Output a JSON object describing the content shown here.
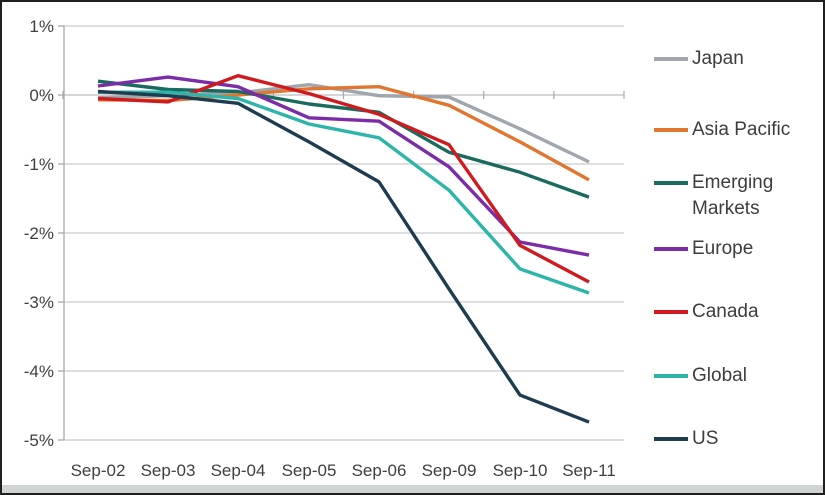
{
  "chart_data": {
    "type": "line",
    "title": "",
    "xlabel": "",
    "ylabel": "",
    "categories": [
      "Sep-02",
      "Sep-03",
      "Sep-04",
      "Sep-05",
      "Sep-06",
      "Sep-09",
      "Sep-10",
      "Sep-11"
    ],
    "y_tick_labels": [
      "1%",
      "0%",
      "-1%",
      "-2%",
      "-3%",
      "-4%",
      "-5%"
    ],
    "ylim": [
      -5,
      1
    ],
    "y_step": 1,
    "y_unit": "%",
    "grid": true,
    "legend_position": "right",
    "series": [
      {
        "name": "Japan",
        "color": "#9fa6ac",
        "values": [
          -0.04,
          -0.01,
          0.03,
          0.15,
          -0.01,
          -0.03,
          -0.49,
          -0.97
        ]
      },
      {
        "name": "Asia Pacific",
        "color": "#e0762f",
        "values": [
          -0.07,
          -0.08,
          0.0,
          0.09,
          0.12,
          -0.15,
          -0.68,
          -1.23
        ]
      },
      {
        "name": "Emerging Markets",
        "color": "#1a6a5f",
        "values": [
          0.2,
          0.08,
          0.05,
          -0.13,
          -0.25,
          -0.83,
          -1.12,
          -1.48
        ]
      },
      {
        "name": "Europe",
        "color": "#7a2da6",
        "values": [
          0.13,
          0.26,
          0.12,
          -0.33,
          -0.38,
          -1.04,
          -2.13,
          -2.32
        ]
      },
      {
        "name": "Canada",
        "color": "#cf1b20",
        "values": [
          -0.05,
          -0.1,
          0.28,
          0.02,
          -0.28,
          -0.72,
          -2.18,
          -2.71
        ]
      },
      {
        "name": "Global",
        "color": "#2db5aa",
        "values": [
          0.04,
          0.04,
          -0.05,
          -0.42,
          -0.62,
          -1.38,
          -2.52,
          -2.87
        ]
      },
      {
        "name": "US",
        "color": "#1d3c50",
        "values": [
          0.05,
          -0.01,
          -0.12,
          -0.68,
          -1.26,
          -2.81,
          -4.35,
          -4.74
        ]
      }
    ]
  }
}
